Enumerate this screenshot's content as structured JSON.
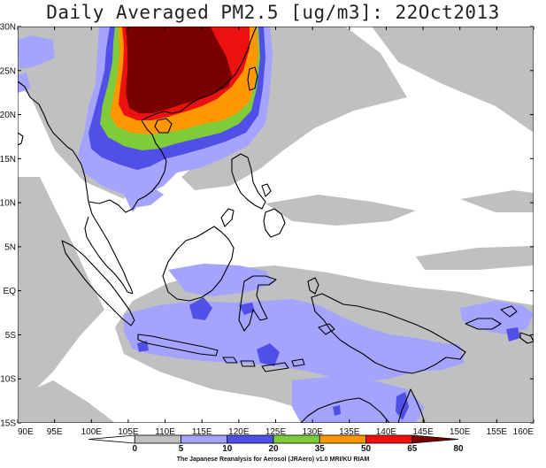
{
  "title": "Daily Averaged PM2.5 [ug/m3]: 22Oct2013",
  "credit": "The Japanese Reanalysis for Aerosol (JRAero) v1.0 MRI/KU RIAM",
  "lat_labels": [
    "30N",
    "25N",
    "20N",
    "15N",
    "10N",
    "5N",
    "EQ",
    "5S",
    "10S",
    "15S"
  ],
  "lon_labels": [
    "90E",
    "95E",
    "100E",
    "105E",
    "110E",
    "115E",
    "120E",
    "125E",
    "130E",
    "135E",
    "140E",
    "145E",
    "150E",
    "155E",
    "160E"
  ],
  "colorbar": {
    "levels": [
      "0",
      "5",
      "10",
      "20",
      "35",
      "50",
      "65",
      "80"
    ],
    "colors": [
      "#ffffff",
      "#c0c0c0",
      "#a4a4ff",
      "#5050e8",
      "#7fcc3a",
      "#ff9800",
      "#ee1010",
      "#7a0000"
    ]
  }
}
